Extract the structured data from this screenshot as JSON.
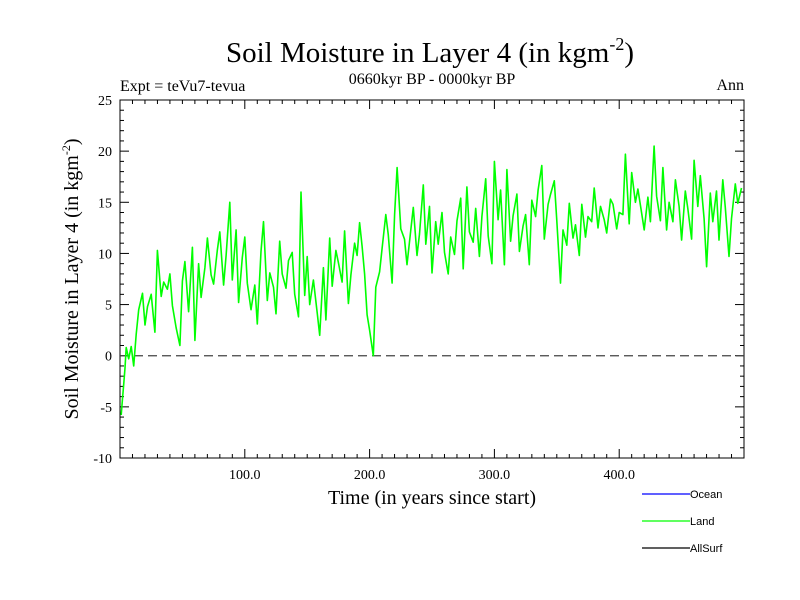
{
  "chart_data": {
    "type": "line",
    "title_main": "Soil Moisture in Layer 4 (in kgm",
    "title_sup": "-2",
    "title_close": ")",
    "subtitle_left": "Expt = teVu7-tevua",
    "subtitle_center": "0660kyr BP - 0000kyr BP",
    "subtitle_right": "Ann",
    "xlabel": "Time (in years since start)",
    "ylabel_main": "Soil Moisture in Layer 4 (in kgm",
    "ylabel_sup": "-2",
    "ylabel_close": ")",
    "xlim": [
      0,
      500
    ],
    "ylim": [
      -10,
      25
    ],
    "x_tick_values": [
      100,
      200,
      300,
      400
    ],
    "x_tick_labels": [
      "100.0",
      "200.0",
      "300.0",
      "400.0"
    ],
    "y_tick_values": [
      -10,
      -5,
      0,
      5,
      10,
      15,
      20,
      25
    ],
    "y_tick_labels": [
      "-10",
      "-5",
      "0",
      "5",
      "10",
      "15",
      "20",
      "25"
    ],
    "reference_line": 0,
    "legend": [
      {
        "name": "Ocean",
        "color": "#0000ff"
      },
      {
        "name": "Land",
        "color": "#00ff00"
      },
      {
        "name": "AllSurf",
        "color": "#000000"
      }
    ],
    "series": [
      {
        "name": "Land",
        "color": "#00ff00",
        "x": [
          1,
          2,
          3,
          4,
          5,
          7,
          9,
          11,
          13,
          15,
          18,
          20,
          22,
          25,
          28,
          30,
          33,
          35,
          38,
          40,
          42,
          45,
          48,
          50,
          52,
          55,
          58,
          60,
          63,
          65,
          68,
          70,
          73,
          75,
          78,
          80,
          83,
          85,
          88,
          90,
          93,
          95,
          98,
          100,
          102,
          105,
          108,
          110,
          113,
          115,
          118,
          120,
          123,
          125,
          128,
          130,
          133,
          135,
          138,
          140,
          143,
          145,
          148,
          150,
          152,
          155,
          158,
          160,
          163,
          165,
          168,
          170,
          173,
          175,
          178,
          180,
          183,
          185,
          188,
          190,
          192,
          194,
          196,
          198,
          200,
          203,
          205,
          208,
          210,
          213,
          215,
          218,
          220,
          222,
          225,
          228,
          230,
          233,
          235,
          238,
          240,
          243,
          245,
          248,
          250,
          253,
          255,
          258,
          260,
          263,
          265,
          268,
          270,
          273,
          275,
          278,
          280,
          283,
          285,
          288,
          290,
          293,
          295,
          298,
          300,
          303,
          305,
          308,
          310,
          313,
          315,
          318,
          320,
          323,
          325,
          328,
          330,
          333,
          335,
          338,
          340,
          343,
          345,
          348,
          350,
          353,
          355,
          358,
          360,
          363,
          365,
          368,
          370,
          373,
          375,
          378,
          380,
          383,
          385,
          388,
          390,
          393,
          395,
          398,
          400,
          403,
          405,
          408,
          410,
          413,
          415,
          418,
          420,
          423,
          425,
          428,
          430,
          433,
          435,
          438,
          440,
          443,
          445,
          448,
          450,
          453,
          455,
          458,
          460,
          463,
          465,
          468,
          470,
          473,
          475,
          478,
          480,
          483,
          485,
          488,
          490,
          493,
          495,
          498
        ],
        "values": [
          -5.8,
          -4.2,
          -2.8,
          -1.2,
          0.8,
          -0.3,
          0.9,
          -1.0,
          2.1,
          4.5,
          6.1,
          3.0,
          4.8,
          6.0,
          2.3,
          10.3,
          5.8,
          7.2,
          6.5,
          8.0,
          4.9,
          2.7,
          1.0,
          7.3,
          9.2,
          4.3,
          10.6,
          1.5,
          9.0,
          5.7,
          8.6,
          11.5,
          7.9,
          7.0,
          10.3,
          12.1,
          6.9,
          9.8,
          15.0,
          7.4,
          12.3,
          5.2,
          9.6,
          11.6,
          7.1,
          4.5,
          6.9,
          3.1,
          10.2,
          13.1,
          5.4,
          8.1,
          6.7,
          4.1,
          11.2,
          8.0,
          6.6,
          9.3,
          10.1,
          6.0,
          3.8,
          16.0,
          5.9,
          9.7,
          5.0,
          7.4,
          4.2,
          2.0,
          8.6,
          3.5,
          11.5,
          6.8,
          10.3,
          9.1,
          7.2,
          12.2,
          5.1,
          7.9,
          11.0,
          9.8,
          13.0,
          10.7,
          8.0,
          4.0,
          2.5,
          0.0,
          6.7,
          8.2,
          10.5,
          13.8,
          11.8,
          7.1,
          13.8,
          18.4,
          12.4,
          11.4,
          8.9,
          12.3,
          14.5,
          9.8,
          11.9,
          16.7,
          10.9,
          14.6,
          8.1,
          13.1,
          10.9,
          14.0,
          10.1,
          8.0,
          11.6,
          9.9,
          13.2,
          15.4,
          8.5,
          16.5,
          12.1,
          11.1,
          14.4,
          9.7,
          13.6,
          17.3,
          11.7,
          9.0,
          19.0,
          13.3,
          16.2,
          8.9,
          18.2,
          11.2,
          13.7,
          15.8,
          10.2,
          12.7,
          13.8,
          8.9,
          15.2,
          13.6,
          16.2,
          18.6,
          11.4,
          14.8,
          15.8,
          17.1,
          13.2,
          7.1,
          12.3,
          10.8,
          14.9,
          11.5,
          12.8,
          9.8,
          14.8,
          11.6,
          13.6,
          13.1,
          16.4,
          12.5,
          14.6,
          13.3,
          12.0,
          15.3,
          14.8,
          12.4,
          14.0,
          13.8,
          19.7,
          12.9,
          17.9,
          15.0,
          16.3,
          13.9,
          12.3,
          15.5,
          13.1,
          20.5,
          15.6,
          13.2,
          18.4,
          12.3,
          15.0,
          13.1,
          17.2,
          14.6,
          11.3,
          16.1,
          14.4,
          11.4,
          19.1,
          14.6,
          17.6,
          13.4,
          8.7,
          15.9,
          13.1,
          16.1,
          11.3,
          17.2,
          14.5,
          9.7,
          13.4,
          16.8,
          14.9,
          16.4
        ]
      }
    ]
  }
}
